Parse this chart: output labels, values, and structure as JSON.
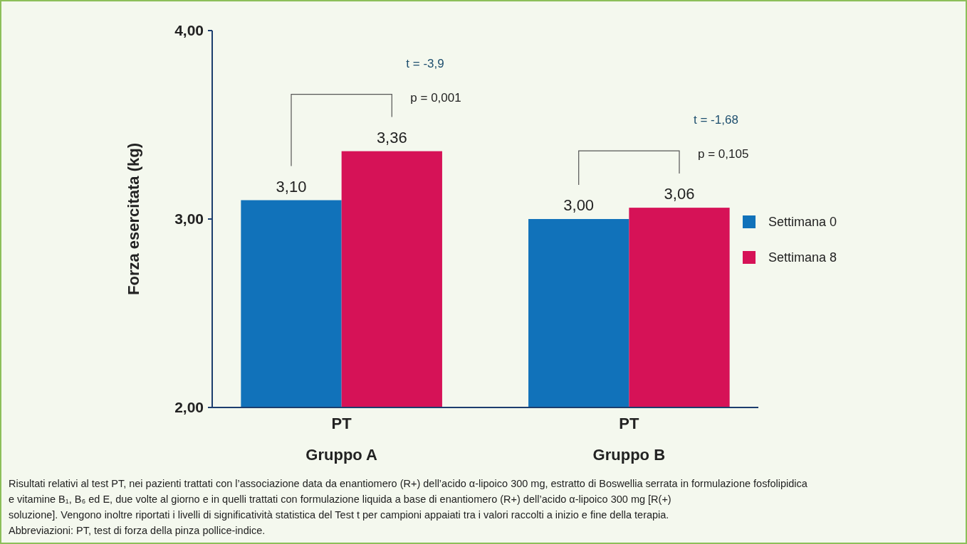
{
  "chart_data": {
    "type": "bar",
    "ylabel": "Forza esercitata (kg)",
    "categories": [
      "PT\nGruppo A",
      "PT\nGruppo B"
    ],
    "series": [
      {
        "name": "Settimana 0",
        "color": "#1172ba",
        "values": [
          3.1,
          3.0
        ],
        "value_labels": [
          "3,10",
          "3,00"
        ]
      },
      {
        "name": "Settimana 8",
        "color": "#d61257",
        "values": [
          3.36,
          3.06
        ],
        "value_labels": [
          "3,36",
          "3,06"
        ]
      }
    ],
    "ylim": [
      2,
      4
    ],
    "yticks": [
      {
        "value": 2,
        "label": "2,00"
      },
      {
        "value": 3,
        "label": "3,00"
      },
      {
        "value": 4,
        "label": "4,00"
      }
    ],
    "grid": false,
    "legend": "right",
    "annotations": [
      "t = -3,9",
      "p = 0,001",
      "t = -1,68",
      "p = 0,105",
      "Risultati relativi al test PT, nei pazienti trattati con l’associazione data da enantiomero (R+) dell’acido α-lipoico 300 mg, estratto di Boswellia serrata in formulazione fosfolipidica",
      "e vitamine B₁, B₆ ed E, due volte al giorno e in quelli trattati con formulazione liquida a base di enantiomero (R+) dell’acido α-lipoico 300 mg [R(+)",
      "soluzione]. Vengono inoltre riportati i livelli di significatività statistica del Test t per campioni appaiati tra i valori raccolti a inizio e fine della terapia.",
      "Abbreviazioni: PT, test di forza della pinza pollice-indice."
    ]
  }
}
